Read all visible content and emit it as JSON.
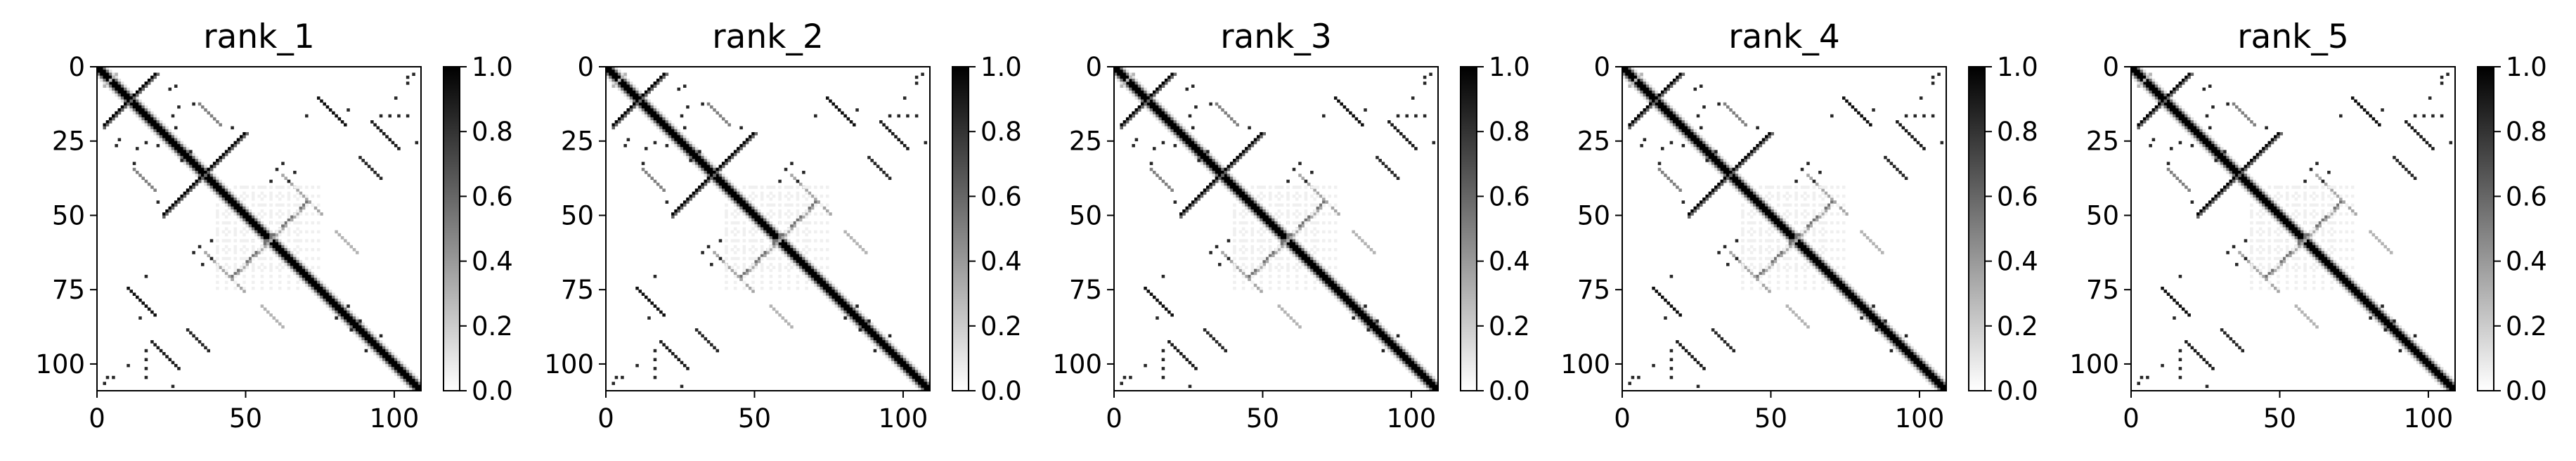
{
  "chart_data": [
    {
      "type": "heatmap",
      "title": "rank_1",
      "xlim": [
        0,
        109
      ],
      "ylim": [
        109,
        0
      ],
      "x_ticks": [
        0,
        50,
        100
      ],
      "y_ticks": [
        0,
        25,
        50,
        75,
        100
      ],
      "colorbar": {
        "range": [
          0.0,
          1.0
        ],
        "ticks": [
          "0.0",
          "0.2",
          "0.4",
          "0.6",
          "0.8",
          "1.0"
        ]
      }
    },
    {
      "type": "heatmap",
      "title": "rank_2",
      "xlim": [
        0,
        109
      ],
      "ylim": [
        109,
        0
      ],
      "x_ticks": [
        0,
        50,
        100
      ],
      "y_ticks": [
        0,
        25,
        50,
        75,
        100
      ],
      "colorbar": {
        "range": [
          0.0,
          1.0
        ],
        "ticks": [
          "0.0",
          "0.2",
          "0.4",
          "0.6",
          "0.8",
          "1.0"
        ]
      }
    },
    {
      "type": "heatmap",
      "title": "rank_3",
      "xlim": [
        0,
        109
      ],
      "ylim": [
        109,
        0
      ],
      "x_ticks": [
        0,
        50,
        100
      ],
      "y_ticks": [
        0,
        25,
        50,
        75,
        100
      ],
      "colorbar": {
        "range": [
          0.0,
          1.0
        ],
        "ticks": [
          "0.0",
          "0.2",
          "0.4",
          "0.6",
          "0.8",
          "1.0"
        ]
      }
    },
    {
      "type": "heatmap",
      "title": "rank_4",
      "xlim": [
        0,
        109
      ],
      "ylim": [
        109,
        0
      ],
      "x_ticks": [
        0,
        50,
        100
      ],
      "y_ticks": [
        0,
        25,
        50,
        75,
        100
      ],
      "colorbar": {
        "range": [
          0.0,
          1.0
        ],
        "ticks": [
          "0.0",
          "0.2",
          "0.4",
          "0.6",
          "0.8",
          "1.0"
        ]
      }
    },
    {
      "type": "heatmap",
      "title": "rank_5",
      "xlim": [
        0,
        109
      ],
      "ylim": [
        109,
        0
      ],
      "x_ticks": [
        0,
        50,
        100
      ],
      "y_ticks": [
        0,
        25,
        50,
        75,
        100
      ],
      "colorbar": {
        "range": [
          0.0,
          1.0
        ],
        "ticks": [
          "0.0",
          "0.2",
          "0.4",
          "0.6",
          "0.8",
          "1.0"
        ]
      }
    }
  ],
  "colors": {
    "high": "#000000",
    "low": "#ffffff"
  },
  "colormap": "Greys"
}
